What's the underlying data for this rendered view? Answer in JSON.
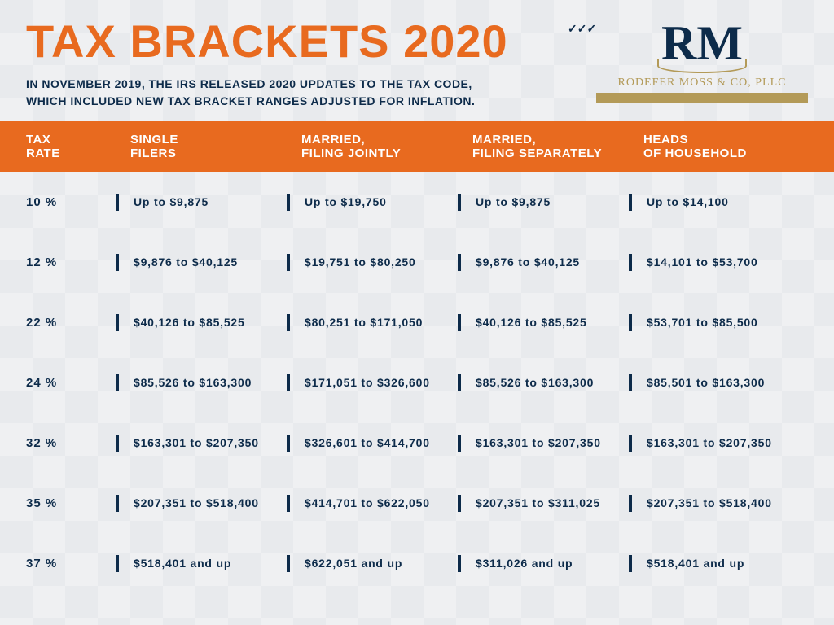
{
  "header": {
    "title": "TAX BRACKETS 2020",
    "subtitle": "IN NOVEMBER 2019, THE IRS RELEASED 2020 UPDATES TO THE TAX CODE, WHICH INCLUDED NEW TAX BRACKET RANGES ADJUSTED FOR INFLATION."
  },
  "logo": {
    "initials": "RM",
    "company": "RODEFER MOSS & CO, PLLC"
  },
  "colors": {
    "accent": "#e86a1f",
    "navy": "#0d2b4a",
    "gold": "#b39a58",
    "bg": "#e8eaed"
  },
  "table": {
    "columns": [
      {
        "line1": "TAX",
        "line2": "RATE"
      },
      {
        "line1": "SINGLE",
        "line2": "FILERS"
      },
      {
        "line1": "MARRIED,",
        "line2": "FILING JOINTLY"
      },
      {
        "line1": "MARRIED,",
        "line2": "FILING SEPARATELY"
      },
      {
        "line1": "HEADS",
        "line2": "OF HOUSEHOLD"
      }
    ],
    "rows": [
      {
        "rate": "10 %",
        "single": "Up to $9,875",
        "joint": "Up to $19,750",
        "separate": "Up to $9,875",
        "hoh": "Up to $14,100"
      },
      {
        "rate": "12 %",
        "single": "$9,876 to $40,125",
        "joint": "$19,751 to $80,250",
        "separate": "$9,876 to $40,125",
        "hoh": "$14,101 to $53,700"
      },
      {
        "rate": "22 %",
        "single": "$40,126 to $85,525",
        "joint": "$80,251 to $171,050",
        "separate": "$40,126 to $85,525",
        "hoh": "$53,701 to $85,500"
      },
      {
        "rate": "24 %",
        "single": "$85,526 to $163,300",
        "joint": "$171,051 to $326,600",
        "separate": "$85,526 to $163,300",
        "hoh": "$85,501 to $163,300"
      },
      {
        "rate": "32 %",
        "single": "$163,301 to $207,350",
        "joint": "$326,601 to $414,700",
        "separate": "$163,301 to $207,350",
        "hoh": "$163,301 to $207,350"
      },
      {
        "rate": "35 %",
        "single": "$207,351 to $518,400",
        "joint": "$414,701 to $622,050",
        "separate": "$207,351 to $311,025",
        "hoh": "$207,351 to $518,400"
      },
      {
        "rate": "37 %",
        "single": "$518,401 and up",
        "joint": "$622,051 and up",
        "separate": "$311,026 and up",
        "hoh": "$518,401 and up"
      }
    ]
  }
}
